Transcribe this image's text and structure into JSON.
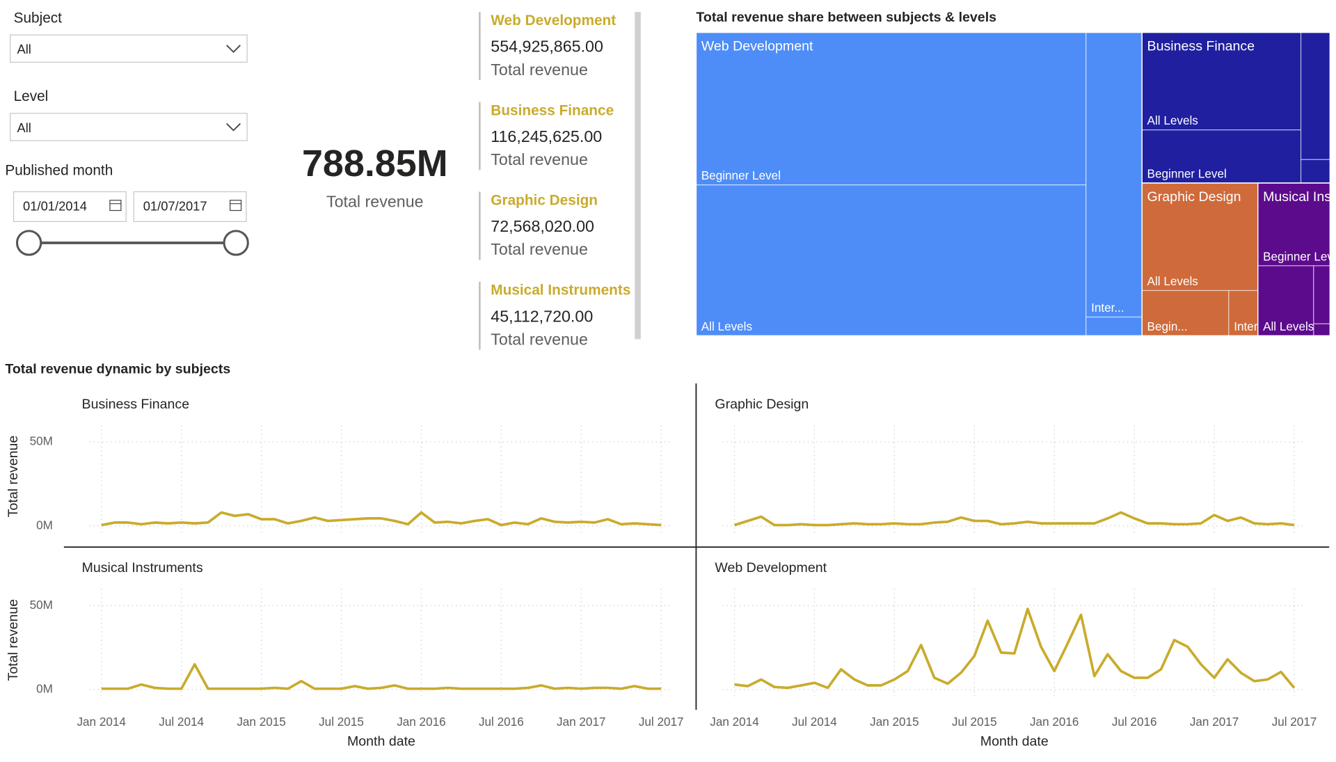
{
  "filters": {
    "subject": {
      "label": "Subject",
      "value": "All"
    },
    "level": {
      "label": "Level",
      "value": "All"
    },
    "published_month": {
      "label": "Published month",
      "start": "01/01/2014",
      "end": "01/07/2017"
    }
  },
  "kpi": {
    "value": "788.85M",
    "label": "Total revenue"
  },
  "cards": [
    {
      "title": "Web Development",
      "value": "554,925,865.00",
      "label": "Total revenue"
    },
    {
      "title": "Business Finance",
      "value": "116,245,625.00",
      "label": "Total revenue"
    },
    {
      "title": "Graphic Design",
      "value": "72,568,020.00",
      "label": "Total revenue"
    },
    {
      "title": "Musical Instruments",
      "value": "45,112,720.00",
      "label": "Total revenue"
    }
  ],
  "chart_data": [
    {
      "type": "treemap",
      "title": "Total revenue share between subjects & levels",
      "series": [
        {
          "name": "Web Development",
          "color": "#4e8df7",
          "categories": [
            "Beginner Level",
            "All Levels",
            "Inter...",
            null
          ],
          "values": [
            244,
            241.2,
            65.4,
            4.3
          ]
        },
        {
          "name": "Business Finance",
          "color": "#1f1fa0",
          "categories": [
            "All Levels",
            "Beginner Level",
            null,
            null
          ],
          "values": [
            63.6,
            34.6,
            15.2,
            2.8
          ]
        },
        {
          "name": "Graphic Design",
          "color": "#cf6a3a",
          "categories": [
            "All Levels",
            "Begin...",
            "Inter..."
          ],
          "values": [
            51.1,
            16.1,
            5.4
          ]
        },
        {
          "name": "Musical Instruments",
          "color": "#5c0b8c",
          "categories": [
            "Beginner Level",
            "All Levels",
            null,
            null
          ],
          "values": [
            24.5,
            16,
            3.9,
            0.8
          ]
        }
      ]
    },
    {
      "type": "line",
      "title": "Total revenue dynamic by subjects",
      "x_label": "Month date",
      "y_label": "Total revenue",
      "color": "#c9ab2c",
      "grid": true,
      "x": [
        "2014-01",
        "2014-02",
        "2014-03",
        "2014-04",
        "2014-05",
        "2014-06",
        "2014-07",
        "2014-08",
        "2014-09",
        "2014-10",
        "2014-11",
        "2014-12",
        "2015-01",
        "2015-02",
        "2015-03",
        "2015-04",
        "2015-05",
        "2015-06",
        "2015-07",
        "2015-08",
        "2015-09",
        "2015-10",
        "2015-11",
        "2015-12",
        "2016-01",
        "2016-02",
        "2016-03",
        "2016-04",
        "2016-05",
        "2016-06",
        "2016-07",
        "2016-08",
        "2016-09",
        "2016-10",
        "2016-11",
        "2016-12",
        "2017-01",
        "2017-02",
        "2017-03",
        "2017-04",
        "2017-05",
        "2017-06",
        "2017-07"
      ],
      "xlim": [
        "2014-01",
        "2017-07"
      ],
      "xticks": [
        {
          "value": "2014-01",
          "label": "Jan 2014"
        },
        {
          "value": "2014-07",
          "label": "Jul 2014"
        },
        {
          "value": "2015-01",
          "label": "Jan 2015"
        },
        {
          "value": "2015-07",
          "label": "Jul 2015"
        },
        {
          "value": "2016-01",
          "label": "Jan 2016"
        },
        {
          "value": "2016-07",
          "label": "Jul 2016"
        },
        {
          "value": "2017-01",
          "label": "Jan 2017"
        },
        {
          "value": "2017-07",
          "label": "Jul 2017"
        }
      ],
      "ylim": [
        -6,
        60
      ],
      "yticks": [
        {
          "value": 0,
          "label": "0M"
        },
        {
          "value": 50,
          "label": "50M"
        }
      ],
      "series": [
        {
          "name": "Business Finance",
          "values": [
            0.5,
            2,
            2,
            1,
            2,
            1.5,
            2,
            1.5,
            2,
            8,
            6,
            7,
            4,
            4,
            1.5,
            3,
            5,
            3,
            3.5,
            4,
            4.5,
            4.5,
            3,
            1,
            8,
            2,
            2.5,
            1.5,
            3,
            4,
            0.5,
            2,
            1,
            4.5,
            2.5,
            2,
            2.5,
            2,
            4,
            1,
            1.5,
            1,
            0.5
          ]
        },
        {
          "name": "Graphic Design",
          "values": [
            0.5,
            3,
            5.5,
            0.5,
            0.5,
            1,
            0.5,
            0.5,
            1,
            1.5,
            1,
            1,
            1.5,
            1,
            1,
            2,
            2.5,
            5,
            3,
            3,
            1,
            1.5,
            2.5,
            1.5,
            1.5,
            1.5,
            1.5,
            1.5,
            4.5,
            8,
            4.5,
            1.5,
            1.5,
            1,
            1,
            1.5,
            6.5,
            3,
            5,
            1.5,
            1,
            1.5,
            0.5
          ]
        },
        {
          "name": "Musical Instruments",
          "values": [
            0.5,
            0.5,
            0.5,
            3,
            1,
            0.5,
            0.5,
            15,
            0.5,
            0.5,
            0.5,
            0.5,
            0.5,
            1,
            0.5,
            5,
            0.5,
            0.5,
            0.5,
            2,
            0.5,
            1,
            2.5,
            0.5,
            0.5,
            0.5,
            1,
            0.5,
            0.5,
            0.5,
            0.5,
            0.5,
            1,
            2.5,
            0.5,
            1,
            0.5,
            1,
            1,
            0.5,
            2,
            0.5,
            0.5
          ]
        },
        {
          "name": "Web Development",
          "values": [
            3,
            2,
            6,
            1.5,
            1,
            2.5,
            4,
            1,
            12,
            6,
            2.5,
            2.5,
            6,
            11,
            26.5,
            7,
            3.5,
            10,
            20,
            41,
            22,
            21.5,
            48,
            25.5,
            11,
            27.5,
            44.5,
            8,
            21,
            11,
            7,
            7,
            12,
            29.5,
            25.5,
            15,
            7,
            18,
            10,
            5,
            6,
            10.5,
            1
          ]
        }
      ]
    }
  ]
}
